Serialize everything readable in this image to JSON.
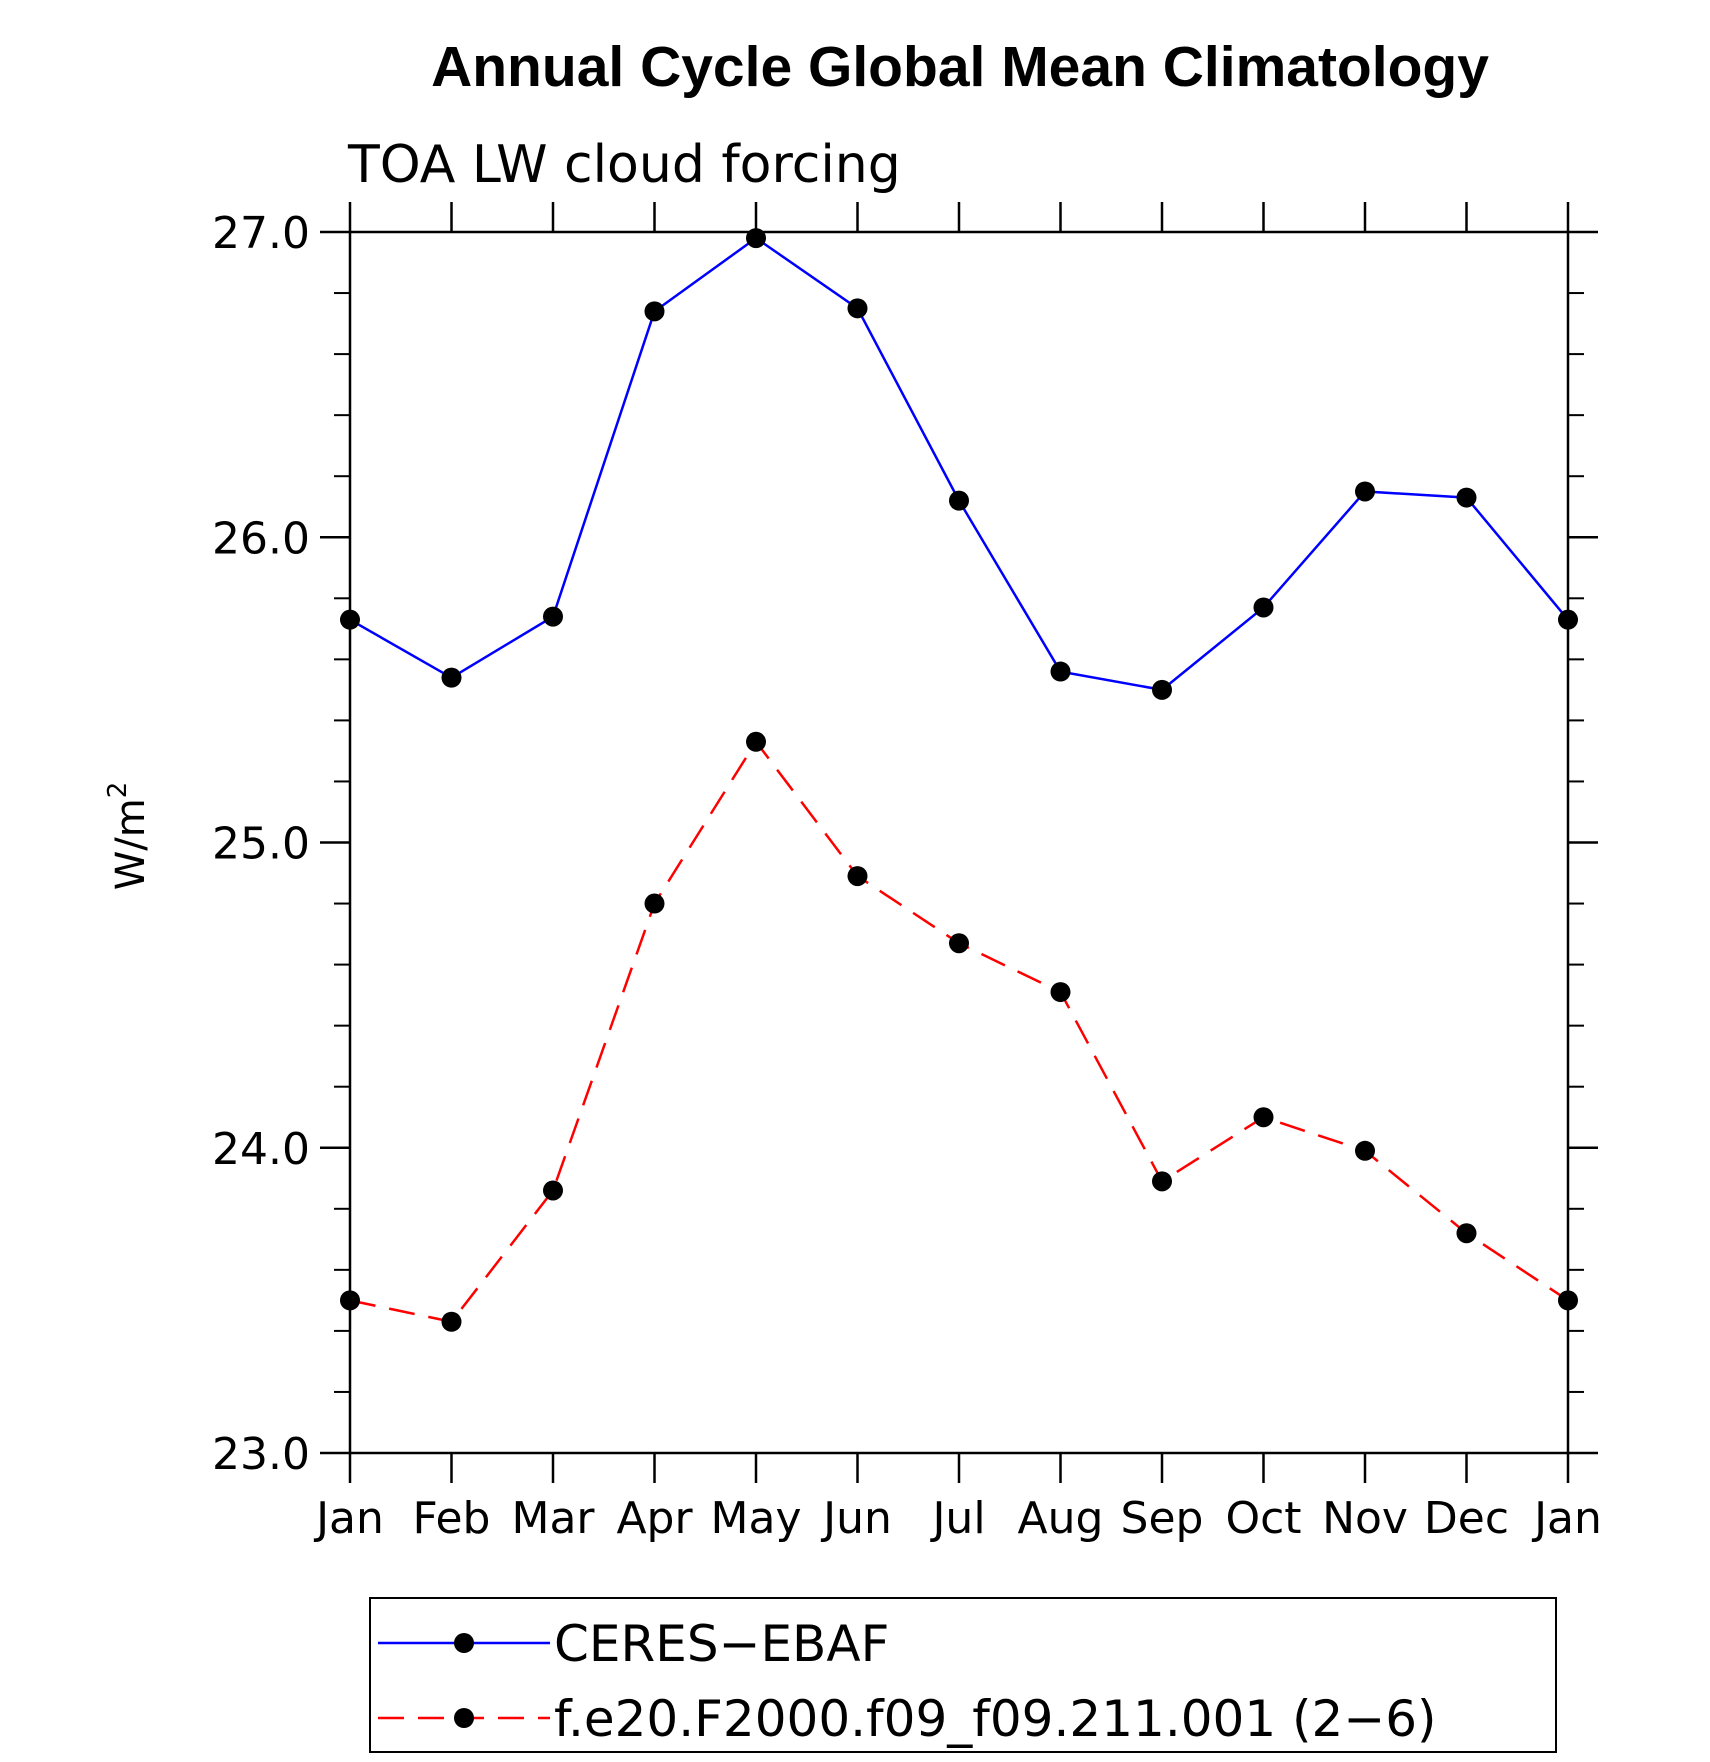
{
  "chart_data": {
    "type": "line",
    "title": "Annual Cycle Global Mean Climatology",
    "subtitle": "TOA LW cloud forcing",
    "ylabel_base": "W/m",
    "ylabel_sup": "2",
    "categories": [
      "Jan",
      "Feb",
      "Mar",
      "Apr",
      "May",
      "Jun",
      "Jul",
      "Aug",
      "Sep",
      "Oct",
      "Nov",
      "Dec",
      "Jan"
    ],
    "ylim": [
      23.0,
      27.0
    ],
    "yticks": [
      "23.0",
      "24.0",
      "25.0",
      "26.0",
      "27.0"
    ],
    "ytick_values": [
      23.0,
      24.0,
      25.0,
      26.0,
      27.0
    ],
    "grid": false,
    "legend_position": "bottom",
    "series": [
      {
        "name": "CERES−EBAF",
        "color": "#0000ff",
        "style": "solid",
        "values": [
          25.73,
          25.54,
          25.74,
          26.74,
          26.98,
          26.75,
          26.12,
          25.56,
          25.5,
          25.77,
          26.15,
          26.13,
          25.73
        ]
      },
      {
        "name": "f.e20.F2000.f09_f09.211.001 (2−6)",
        "color": "#ff0000",
        "style": "dashed",
        "values": [
          23.5,
          23.43,
          23.86,
          24.8,
          25.33,
          24.89,
          24.67,
          24.51,
          23.89,
          24.1,
          23.99,
          23.72,
          23.5
        ]
      }
    ]
  }
}
